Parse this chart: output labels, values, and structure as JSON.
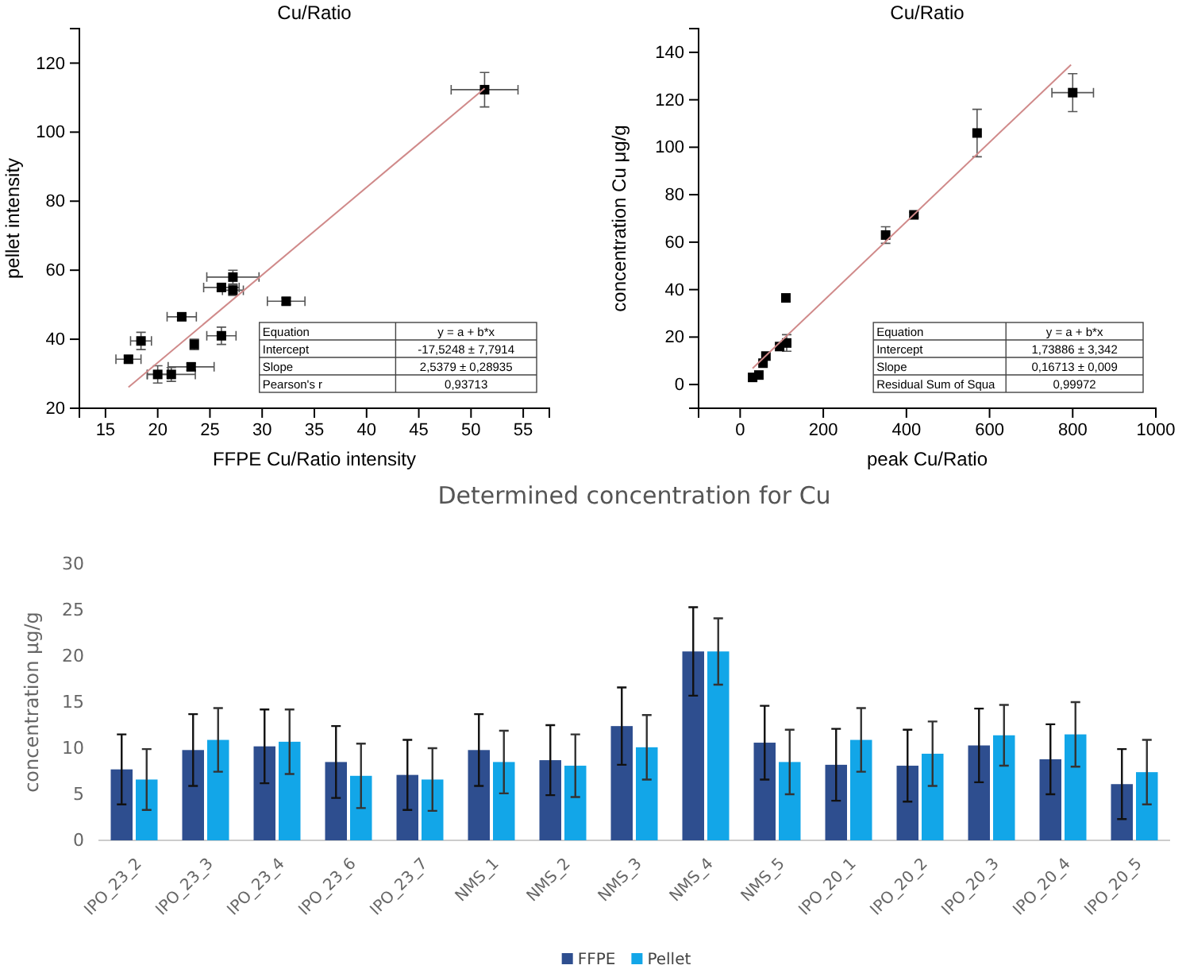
{
  "chart_data": [
    {
      "type": "scatter",
      "title": "Cu/Ratio",
      "xlabel": "FFPE Cu/Ratio intensity",
      "ylabel": "pellet intensity",
      "xlim": [
        12.5,
        57.5
      ],
      "ylim": [
        20,
        130
      ],
      "xticks": [
        15,
        20,
        25,
        30,
        35,
        40,
        45,
        50,
        55
      ],
      "yticks": [
        20,
        40,
        60,
        80,
        100,
        120
      ],
      "grid": false,
      "marker": "square",
      "series": [
        {
          "type": "scatter",
          "color": "#000000",
          "x": [
            51.3,
            27.2,
            26.1,
            27.2,
            32.3,
            22.3,
            26.1,
            18.4,
            23.5,
            17.2,
            23.2,
            20,
            21.3
          ],
          "values": [
            112.3,
            58,
            55,
            54.2,
            51,
            46.5,
            41,
            39.5,
            38.5,
            34.2,
            32,
            29.8,
            29.8
          ],
          "errors": [
            5,
            2,
            1,
            1.5,
            1,
            1,
            2.5,
            2.5,
            1.5,
            1,
            1,
            2.5,
            2
          ],
          "xerrors": [
            3.2,
            2.5,
            1.7,
            1,
            1.8,
            1.4,
            1.4,
            1,
            0.3,
            1.2,
            2.2,
            1,
            2.3
          ]
        },
        {
          "type": "line",
          "color": "#d08a8a",
          "marker": "none",
          "x": [
            17.2,
            51.3
          ],
          "values": [
            26.1,
            112.7
          ]
        }
      ],
      "annotations": [
        "Equation",
        "y = a + b*x",
        "Intercept",
        "-17,5248 ± 7,7914",
        "Slope",
        "2,5379 ± 0,28935",
        "Pearson's r",
        "0,93713"
      ]
    },
    {
      "type": "scatter",
      "title": "Cu/Ratio",
      "xlabel": "peak Cu/Ratio",
      "ylabel": "concentration Cu μg/g",
      "xlim": [
        -100,
        1000
      ],
      "ylim": [
        -10,
        150
      ],
      "xticks": [
        0,
        200,
        400,
        600,
        800,
        1000
      ],
      "yticks": [
        0,
        20,
        40,
        60,
        80,
        100,
        120,
        140
      ],
      "grid": false,
      "marker": "square",
      "series": [
        {
          "type": "scatter",
          "color": "#000000",
          "x": [
            30,
            45,
            55,
            62,
            95,
            110,
            112,
            350,
            418,
            570,
            800
          ],
          "values": [
            3,
            4,
            9,
            12,
            16,
            36.5,
            17.5,
            63,
            71.5,
            106,
            123
          ],
          "errors": [
            null,
            null,
            null,
            null,
            null,
            null,
            3.5,
            3.5,
            1,
            10,
            8
          ],
          "xerrors": [
            null,
            null,
            null,
            null,
            null,
            null,
            null,
            null,
            null,
            null,
            50
          ]
        },
        {
          "type": "line",
          "color": "#d08a8a",
          "marker": "none",
          "x": [
            30,
            796
          ],
          "values": [
            6.8,
            134.8
          ]
        }
      ],
      "annotations": [
        "Equation",
        "y = a + b*x",
        "Intercept",
        "1,73886 ± 3,342",
        "Slope",
        "0,16713 ± 0,009",
        "Residual Sum of Squa",
        "0,99972"
      ]
    },
    {
      "type": "bar",
      "title": "Determined concentration for Cu",
      "ylabel": "concentration μg/g",
      "categories": [
        "IPO_23_2",
        "IPO_23_3",
        "IPO_23_4",
        "IPO_23_6",
        "IPO_23_7",
        "NMS_1",
        "NMS_2",
        "NMS_3",
        "NMS_4",
        "NMS_5",
        "IPO_20_1",
        "IPO_20_2",
        "IPO_20_3",
        "IPO_20_4",
        "IPO_20_5"
      ],
      "ylim": [
        0,
        30
      ],
      "yticks": [
        0,
        5,
        10,
        15,
        20,
        25,
        30
      ],
      "grid": false,
      "legend": "bottom",
      "series": [
        {
          "name": "FFPE",
          "color": "#2e4e8f",
          "values": [
            7.7,
            9.8,
            10.2,
            8.5,
            7.1,
            9.8,
            8.7,
            12.4,
            20.5,
            10.6,
            8.2,
            8.1,
            10.3,
            8.8,
            6.1
          ],
          "errors": [
            3.8,
            3.9,
            4,
            3.9,
            3.8,
            3.9,
            3.8,
            4.2,
            4.8,
            4,
            3.9,
            3.9,
            4,
            3.8,
            3.8
          ]
        },
        {
          "name": "Pellet",
          "color": "#12a6e8",
          "values": [
            6.6,
            10.9,
            10.7,
            7,
            6.6,
            8.5,
            8.1,
            10.1,
            20.5,
            8.5,
            10.9,
            9.4,
            11.4,
            11.5,
            7.4
          ],
          "errors": [
            3.3,
            3.45,
            3.5,
            3.5,
            3.4,
            3.4,
            3.4,
            3.5,
            3.6,
            3.5,
            3.45,
            3.5,
            3.3,
            3.5,
            3.5
          ]
        }
      ]
    }
  ]
}
